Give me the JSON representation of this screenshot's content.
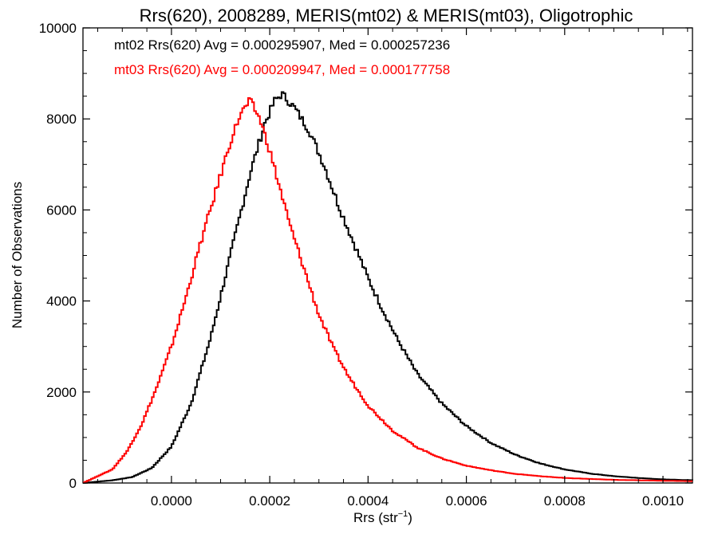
{
  "chart_data": {
    "type": "line",
    "title": "Rrs(620), 2008289, MERIS(mt02) & MERIS(mt03), Oligotrophic",
    "xlabel": "Rrs (str",
    "xlabel_sup": "−1",
    "xlabel_close": ")",
    "ylabel": "Number of Observations",
    "xlim": [
      -0.00018,
      0.00106
    ],
    "ylim": [
      0,
      10000
    ],
    "x_ticks": [
      0.0,
      0.0002,
      0.0004,
      0.0006,
      0.0008,
      0.001
    ],
    "x_tick_labels": [
      "0.0000",
      "0.0002",
      "0.0004",
      "0.0006",
      "0.0008",
      "0.0010"
    ],
    "y_ticks": [
      0,
      2000,
      4000,
      6000,
      8000,
      10000
    ],
    "y_tick_labels": [
      "0",
      "2000",
      "4000",
      "6000",
      "8000",
      "10000"
    ],
    "grid": false,
    "legend_position": "top-left",
    "series": [
      {
        "name": "mt02 Rrs(620) Avg = 0.000295907, Med = 0.000257236",
        "color": "#000000",
        "step": "histogram",
        "points": [
          [
            -0.00018,
            0
          ],
          [
            -0.00012,
            60
          ],
          [
            -8e-05,
            130
          ],
          [
            -4e-05,
            330
          ],
          [
            0.0,
            800
          ],
          [
            4e-05,
            1750
          ],
          [
            8e-05,
            3200
          ],
          [
            0.00012,
            5000
          ],
          [
            0.00016,
            6800
          ],
          [
            0.00019,
            7900
          ],
          [
            0.00021,
            8400
          ],
          [
            0.000225,
            8550
          ],
          [
            0.00025,
            8250
          ],
          [
            0.00028,
            7750
          ],
          [
            0.00031,
            7000
          ],
          [
            0.00034,
            6100
          ],
          [
            0.00037,
            5300
          ],
          [
            0.0004,
            4500
          ],
          [
            0.00043,
            3800
          ],
          [
            0.00046,
            3150
          ],
          [
            0.0005,
            2400
          ],
          [
            0.00055,
            1750
          ],
          [
            0.0006,
            1250
          ],
          [
            0.00065,
            880
          ],
          [
            0.0007,
            620
          ],
          [
            0.00075,
            430
          ],
          [
            0.0008,
            300
          ],
          [
            0.00085,
            210
          ],
          [
            0.0009,
            150
          ],
          [
            0.00095,
            110
          ],
          [
            0.001,
            80
          ],
          [
            0.00106,
            60
          ]
        ]
      },
      {
        "name": "mt03 Rrs(620) Avg = 0.000209947, Med = 0.000177758",
        "color": "#ff0000",
        "step": "histogram",
        "points": [
          [
            -0.00018,
            0
          ],
          [
            -0.00015,
            150
          ],
          [
            -0.00012,
            300
          ],
          [
            -9e-05,
            700
          ],
          [
            -6e-05,
            1300
          ],
          [
            -3e-05,
            2100
          ],
          [
            0.0,
            3000
          ],
          [
            3e-05,
            4100
          ],
          [
            6e-05,
            5300
          ],
          [
            9e-05,
            6400
          ],
          [
            0.00012,
            7500
          ],
          [
            0.00014,
            8100
          ],
          [
            0.00016,
            8400
          ],
          [
            0.00018,
            8000
          ],
          [
            0.0002,
            7300
          ],
          [
            0.00022,
            6500
          ],
          [
            0.00024,
            5700
          ],
          [
            0.00027,
            4700
          ],
          [
            0.0003,
            3700
          ],
          [
            0.00033,
            2950
          ],
          [
            0.00036,
            2350
          ],
          [
            0.0004,
            1700
          ],
          [
            0.00045,
            1150
          ],
          [
            0.0005,
            780
          ],
          [
            0.00055,
            540
          ],
          [
            0.0006,
            380
          ],
          [
            0.00065,
            280
          ],
          [
            0.0007,
            200
          ],
          [
            0.00075,
            150
          ],
          [
            0.0008,
            110
          ],
          [
            0.0009,
            70
          ],
          [
            0.001,
            50
          ],
          [
            0.00106,
            40
          ]
        ]
      }
    ]
  }
}
